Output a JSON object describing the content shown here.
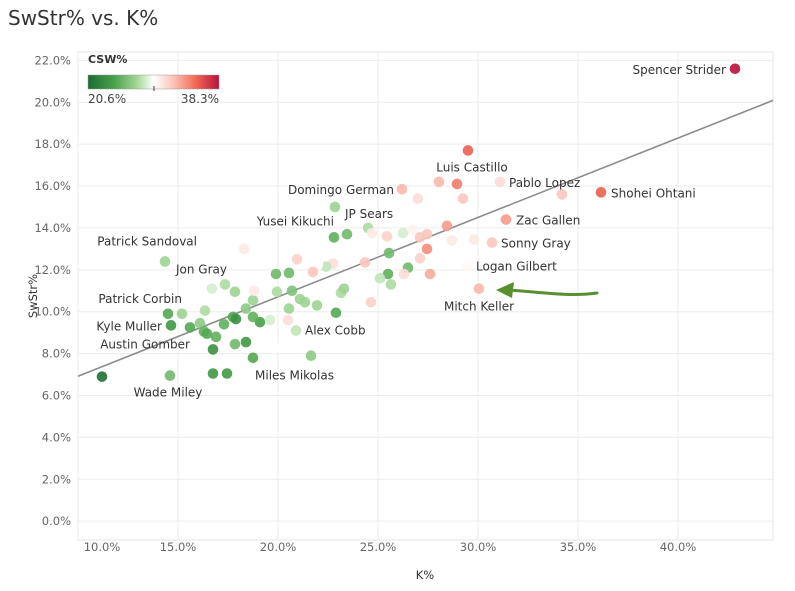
{
  "title": "SwStr% vs. K%",
  "chart_data": {
    "type": "scatter",
    "title": "SwStr% vs. K%",
    "xlabel": "K%",
    "ylabel": "SwStr%",
    "xlim": [
      10,
      44.75
    ],
    "ylim": [
      -0.9,
      22.4
    ],
    "xticks": [
      10,
      15,
      20,
      25,
      30,
      35,
      40
    ],
    "xtick_labels": [
      "10.0%",
      "15.0%",
      "20.0%",
      "25.0%",
      "30.0%",
      "35.0%",
      "40.0%"
    ],
    "yticks": [
      0,
      2,
      4,
      6,
      8,
      10,
      12,
      14,
      16,
      18,
      20,
      22
    ],
    "ytick_labels": [
      "0.0%",
      "2.0%",
      "4.0%",
      "6.0%",
      "8.0%",
      "10.0%",
      "12.0%",
      "14.0%",
      "16.0%",
      "18.0%",
      "20.0%",
      "22.0%"
    ],
    "grid": true,
    "color_legend": {
      "title": "CSW%",
      "min_label": "20.6%",
      "max_label": "38.3%",
      "min": 20.6,
      "max": 38.3,
      "mid": 29.5,
      "position": "top-left"
    },
    "colors": {
      "low": "#1b6b35",
      "mid": "#ffffff",
      "high": "#b8123c",
      "trendline": "#8c8c8c",
      "arrow": "#5a8f2f"
    },
    "trendline": {
      "slope": 0.379,
      "intercept": 3.13
    },
    "annotation": {
      "type": "arrow",
      "points_to": "Mitch Keller"
    },
    "points": [
      {
        "label": "Spencer Strider",
        "k": 42.85,
        "sw": 21.6,
        "csw": 38.3
      },
      {
        "label": "Luis Castillo",
        "k": 29.5,
        "sw": 17.7,
        "csw": 35.5
      },
      {
        "label": "Pablo Lopez",
        "k": 31.1,
        "sw": 16.2,
        "csw": 31.0
      },
      {
        "label": "Shohei Ohtani",
        "k": 36.15,
        "sw": 15.7,
        "csw": 35.5
      },
      {
        "label": "Domingo German",
        "k": 26.2,
        "sw": 15.85,
        "csw": 32.5
      },
      {
        "label": "Zac Gallen",
        "k": 31.4,
        "sw": 14.4,
        "csw": 33.5
      },
      {
        "label": "Sonny Gray",
        "k": 30.7,
        "sw": 13.3,
        "csw": 32.0
      },
      {
        "label": "Logan Gilbert",
        "k": 29.45,
        "sw": 12.2,
        "csw": 29.8
      },
      {
        "label": "Mitch Keller",
        "k": 30.05,
        "sw": 11.1,
        "csw": 32.5
      },
      {
        "label": "JP Sears",
        "k": 22.85,
        "sw": 15.0,
        "csw": 27.0
      },
      {
        "label": "Yusei Kikuchi",
        "k": 22.8,
        "sw": 13.55,
        "csw": 25.0
      },
      {
        "label": "Patrick Sandoval",
        "k": 16.45,
        "sw": 13.4,
        "csw": 29.5
      },
      {
        "label": "Jon Gray",
        "k": 14.35,
        "sw": 12.4,
        "csw": 27.0
      },
      {
        "label": "Patrick Corbin",
        "k": 14.5,
        "sw": 9.9,
        "csw": 24.5
      },
      {
        "label": "Kyle Muller",
        "k": 14.65,
        "sw": 9.35,
        "csw": 23.5
      },
      {
        "label": "Austin Gomber",
        "k": 16.75,
        "sw": 8.2,
        "csw": 23.0
      },
      {
        "label": "Wade Miley",
        "k": 14.6,
        "sw": 6.95,
        "csw": 25.5
      },
      {
        "label": "Miles Mikolas",
        "k": 17.45,
        "sw": 7.05,
        "csw": 23.5
      },
      {
        "label": "Alex Cobb",
        "k": 20.9,
        "sw": 9.1,
        "csw": 28.0
      },
      {
        "k": 11.2,
        "sw": 6.9,
        "csw": 21.0
      },
      {
        "k": 16.75,
        "sw": 7.05,
        "csw": 23.5
      },
      {
        "k": 28.05,
        "sw": 16.2,
        "csw": 32.5
      },
      {
        "k": 28.95,
        "sw": 16.1,
        "csw": 34.5
      },
      {
        "k": 29.25,
        "sw": 15.4,
        "csw": 32.0
      },
      {
        "k": 27.0,
        "sw": 15.4,
        "csw": 31.0
      },
      {
        "k": 34.2,
        "sw": 15.6,
        "csw": 32.0
      },
      {
        "k": 23.45,
        "sw": 13.7,
        "csw": 25.5
      },
      {
        "k": 24.5,
        "sw": 14.0,
        "csw": 27.5
      },
      {
        "k": 24.7,
        "sw": 13.75,
        "csw": 30.5
      },
      {
        "k": 25.45,
        "sw": 13.6,
        "csw": 31.5
      },
      {
        "k": 26.25,
        "sw": 13.75,
        "csw": 28.5
      },
      {
        "k": 26.75,
        "sw": 13.9,
        "csw": 30.0
      },
      {
        "k": 27.1,
        "sw": 13.55,
        "csw": 32.0
      },
      {
        "k": 27.45,
        "sw": 13.7,
        "csw": 32.0
      },
      {
        "k": 28.45,
        "sw": 14.1,
        "csw": 33.5
      },
      {
        "k": 28.7,
        "sw": 13.4,
        "csw": 30.5
      },
      {
        "k": 29.8,
        "sw": 13.45,
        "csw": 30.5
      },
      {
        "k": 27.45,
        "sw": 13.0,
        "csw": 34.0
      },
      {
        "k": 25.55,
        "sw": 12.8,
        "csw": 25.5
      },
      {
        "k": 24.35,
        "sw": 12.35,
        "csw": 32.0
      },
      {
        "k": 20.95,
        "sw": 12.5,
        "csw": 31.5
      },
      {
        "k": 22.75,
        "sw": 12.3,
        "csw": 31.0
      },
      {
        "k": 22.4,
        "sw": 12.15,
        "csw": 28.0
      },
      {
        "k": 22.0,
        "sw": 12.25,
        "csw": 29.5
      },
      {
        "k": 27.1,
        "sw": 12.55,
        "csw": 31.5
      },
      {
        "k": 26.5,
        "sw": 12.1,
        "csw": 25.5
      },
      {
        "k": 25.5,
        "sw": 11.8,
        "csw": 25.0
      },
      {
        "k": 25.1,
        "sw": 11.6,
        "csw": 28.0
      },
      {
        "k": 25.65,
        "sw": 11.3,
        "csw": 27.5
      },
      {
        "k": 26.3,
        "sw": 11.8,
        "csw": 31.0
      },
      {
        "k": 27.6,
        "sw": 11.8,
        "csw": 33.0
      },
      {
        "k": 21.75,
        "sw": 11.9,
        "csw": 32.0
      },
      {
        "k": 19.9,
        "sw": 11.8,
        "csw": 25.5
      },
      {
        "k": 20.55,
        "sw": 11.85,
        "csw": 25.5
      },
      {
        "k": 19.95,
        "sw": 10.95,
        "csw": 27.5
      },
      {
        "k": 20.7,
        "sw": 11.0,
        "csw": 26.0
      },
      {
        "k": 21.1,
        "sw": 10.6,
        "csw": 27.0
      },
      {
        "k": 21.35,
        "sw": 10.45,
        "csw": 27.0
      },
      {
        "k": 21.95,
        "sw": 10.3,
        "csw": 27.0
      },
      {
        "k": 23.15,
        "sw": 10.9,
        "csw": 27.5
      },
      {
        "k": 23.3,
        "sw": 11.1,
        "csw": 27.0
      },
      {
        "k": 22.9,
        "sw": 9.95,
        "csw": 24.5
      },
      {
        "k": 24.65,
        "sw": 10.45,
        "csw": 31.5
      },
      {
        "k": 20.55,
        "sw": 10.15,
        "csw": 27.0
      },
      {
        "k": 20.5,
        "sw": 9.6,
        "csw": 31.0
      },
      {
        "k": 18.75,
        "sw": 10.55,
        "csw": 27.0
      },
      {
        "k": 19.1,
        "sw": 9.5,
        "csw": 24.0
      },
      {
        "k": 19.6,
        "sw": 9.6,
        "csw": 28.5
      },
      {
        "k": 18.3,
        "sw": 13.0,
        "csw": 30.5
      },
      {
        "k": 17.35,
        "sw": 11.3,
        "csw": 27.5
      },
      {
        "k": 16.7,
        "sw": 11.1,
        "csw": 28.5
      },
      {
        "k": 17.85,
        "sw": 10.95,
        "csw": 27.0
      },
      {
        "k": 18.8,
        "sw": 11.0,
        "csw": 30.5
      },
      {
        "k": 15.2,
        "sw": 9.9,
        "csw": 27.0
      },
      {
        "k": 16.35,
        "sw": 10.05,
        "csw": 27.5
      },
      {
        "k": 15.6,
        "sw": 9.25,
        "csw": 24.5
      },
      {
        "k": 16.1,
        "sw": 9.45,
        "csw": 26.5
      },
      {
        "k": 16.3,
        "sw": 9.05,
        "csw": 25.0
      },
      {
        "k": 16.45,
        "sw": 8.95,
        "csw": 24.5
      },
      {
        "k": 16.9,
        "sw": 8.8,
        "csw": 25.0
      },
      {
        "k": 17.3,
        "sw": 9.4,
        "csw": 25.0
      },
      {
        "k": 17.75,
        "sw": 9.75,
        "csw": 24.5
      },
      {
        "k": 17.9,
        "sw": 9.65,
        "csw": 23.0
      },
      {
        "k": 18.4,
        "sw": 10.15,
        "csw": 26.5
      },
      {
        "k": 18.75,
        "sw": 9.75,
        "csw": 25.0
      },
      {
        "k": 17.85,
        "sw": 8.45,
        "csw": 25.5
      },
      {
        "k": 18.4,
        "sw": 8.55,
        "csw": 23.5
      },
      {
        "k": 18.75,
        "sw": 7.8,
        "csw": 24.5
      },
      {
        "k": 19.85,
        "sw": 8.25,
        "csw": 29.5
      },
      {
        "k": 21.65,
        "sw": 7.9,
        "csw": 26.5
      }
    ]
  }
}
